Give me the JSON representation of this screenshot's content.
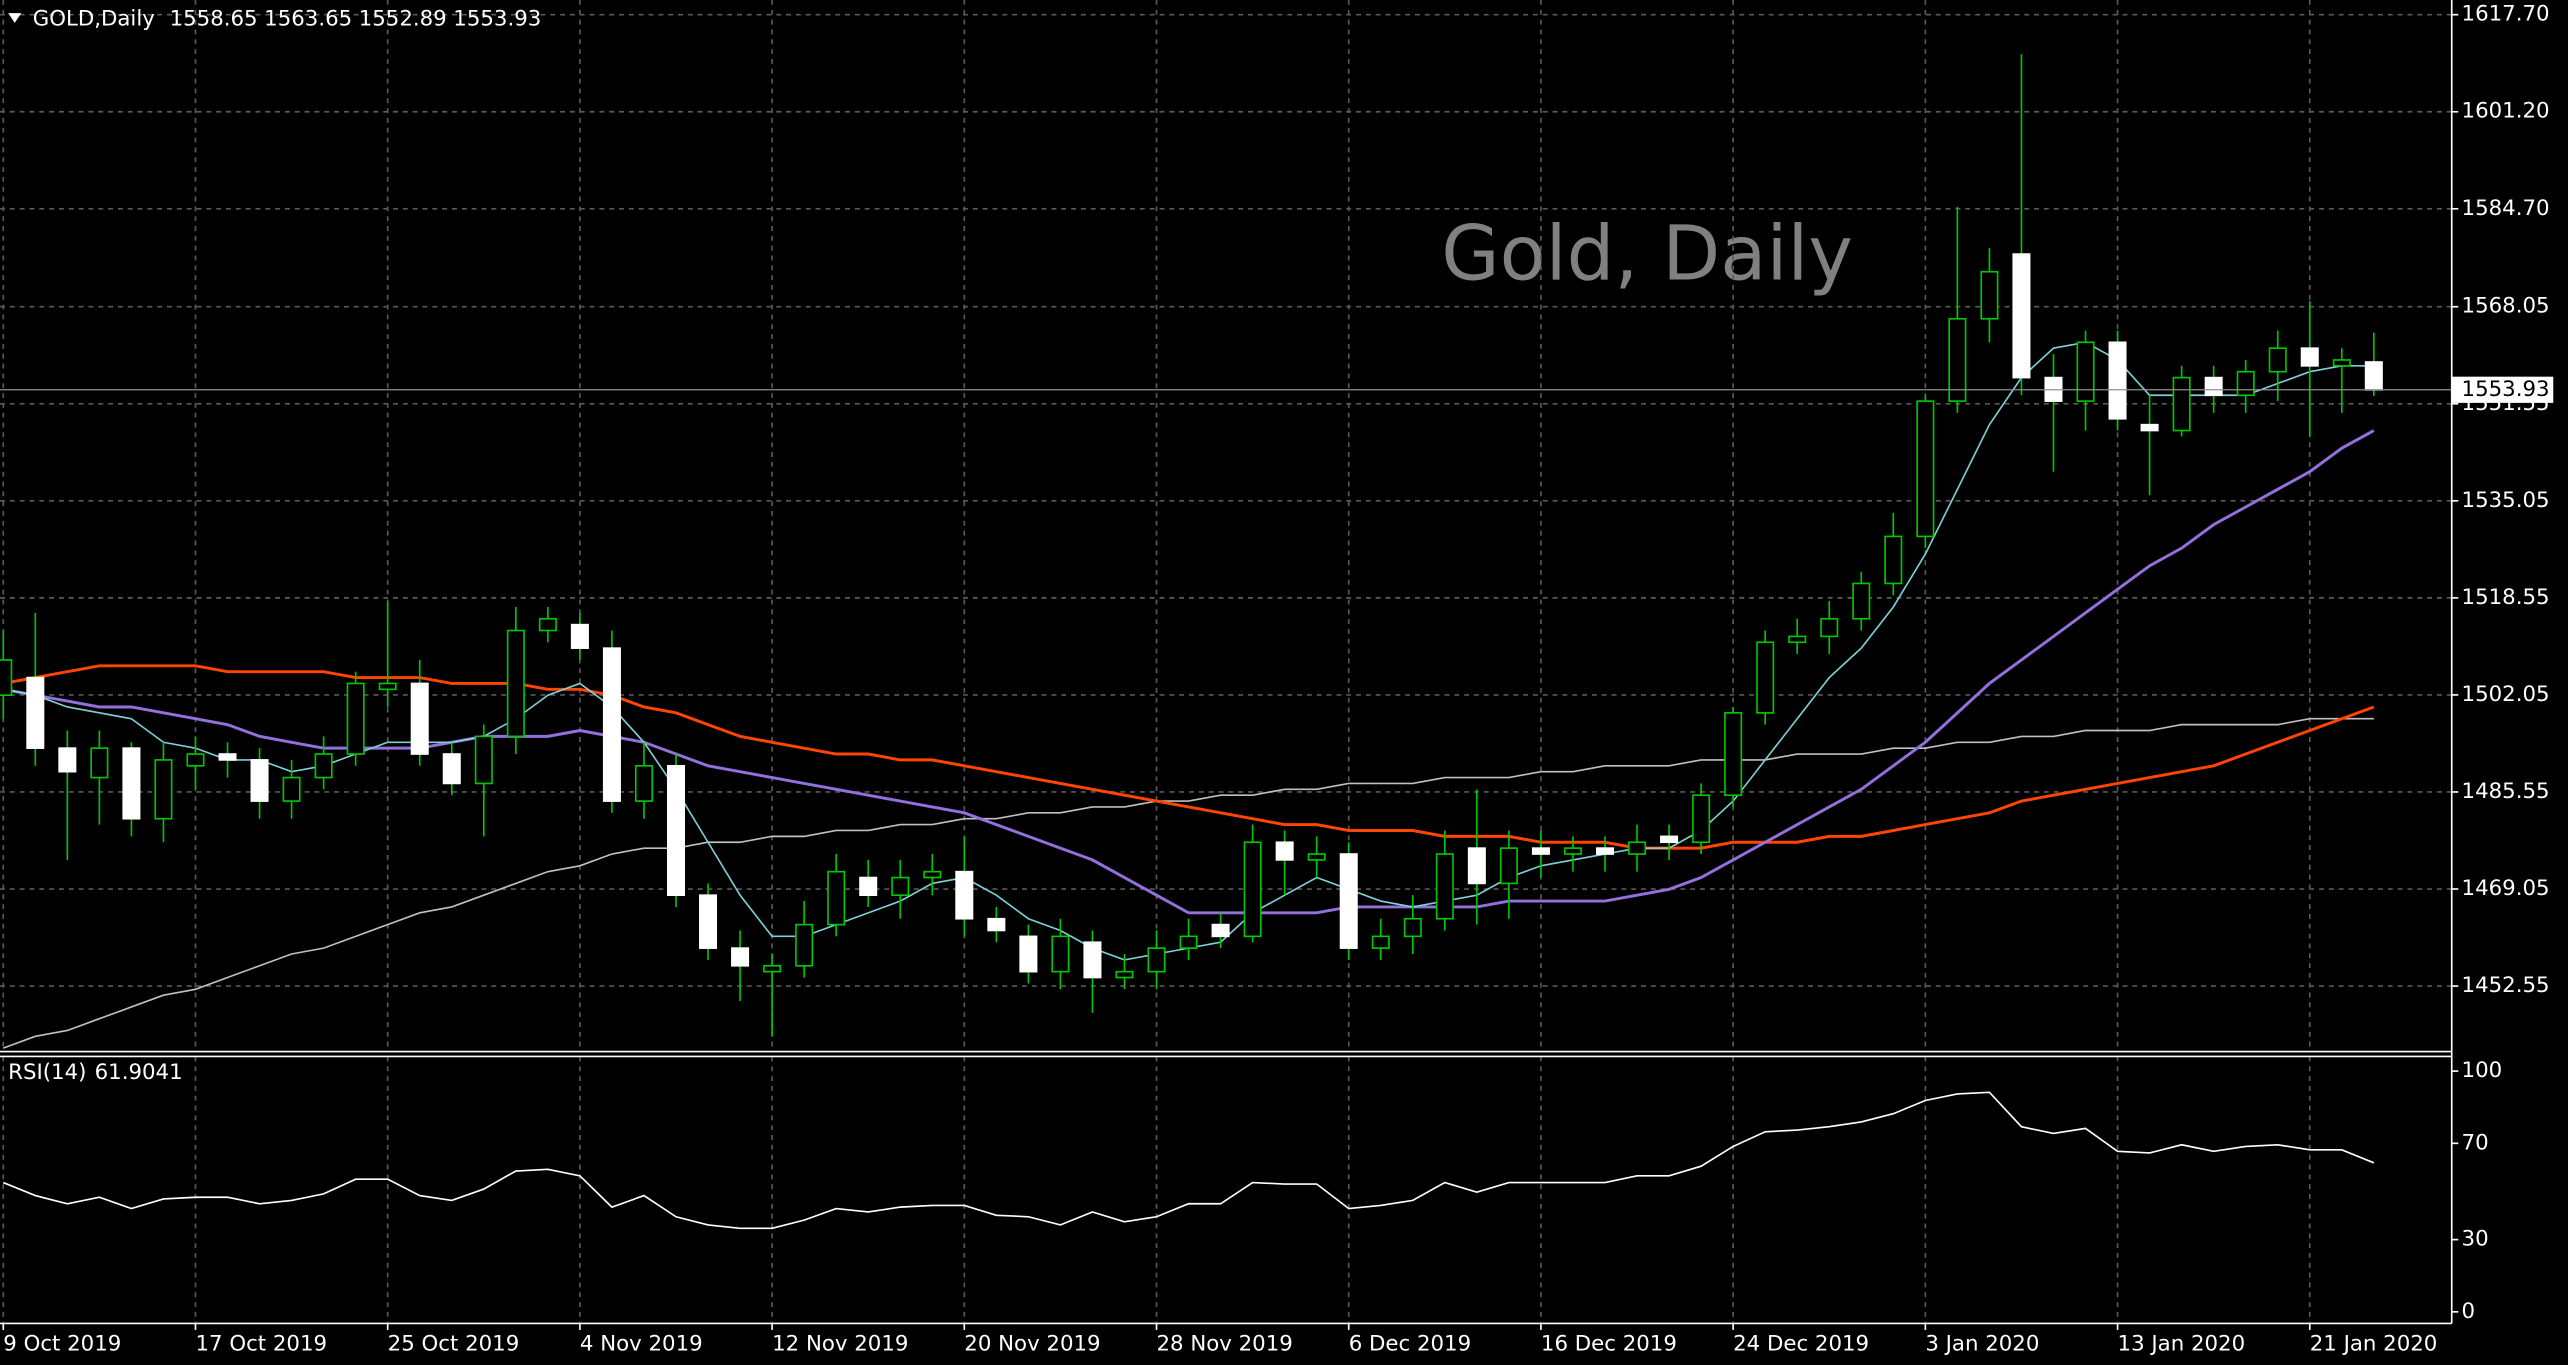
{
  "chart_data": [
    {
      "type": "candlestick",
      "title": "GOLD,Daily",
      "watermark": "Gold, Daily",
      "categories": [
        "9 Oct 2019",
        null,
        null,
        null,
        null,
        null,
        "17 Oct 2019",
        null,
        null,
        null,
        null,
        null,
        "25 Oct 2019",
        null,
        null,
        null,
        null,
        null,
        "4 Nov 2019",
        null,
        null,
        null,
        null,
        null,
        "12 Nov 2019",
        null,
        null,
        null,
        null,
        null,
        "20 Nov 2019",
        null,
        null,
        null,
        null,
        null,
        "28 Nov 2019",
        null,
        null,
        null,
        null,
        null,
        "6 Dec 2019",
        null,
        null,
        null,
        null,
        null,
        "16 Dec 2019",
        null,
        null,
        null,
        null,
        null,
        "24 Dec 2019",
        null,
        null,
        null,
        null,
        null,
        "3 Jan 2020",
        null,
        null,
        null,
        null,
        null,
        "13 Jan 2020",
        null,
        null,
        null,
        null,
        null,
        "21 Jan 2020",
        null,
        null
      ],
      "open": [
        1502,
        1505,
        1493,
        1488,
        1493,
        1481,
        1490,
        1492,
        1491,
        1484,
        1488,
        1492,
        1503,
        1504,
        1492,
        1487,
        1495,
        1513,
        1514,
        1510,
        1484,
        1490,
        1468,
        1459,
        1455,
        1456,
        1463,
        1471,
        1468,
        1471,
        1472,
        1464,
        1461,
        1455,
        1460,
        1454,
        1455,
        1459,
        1463,
        1461,
        1477,
        1474,
        1475,
        1459,
        1461,
        1464,
        1476,
        1470,
        1476,
        1475,
        1476,
        1475,
        1478,
        1477,
        1485,
        1499,
        1511,
        1512,
        1515,
        1521,
        1529,
        1552,
        1566,
        1577,
        1556,
        1552,
        1562,
        1548,
        1547,
        1556,
        1553,
        1557,
        1561,
        1558,
        1558.65
      ],
      "high": [
        1513,
        1516,
        1496,
        1496,
        1494,
        1494,
        1495,
        1494,
        1493,
        1491,
        1495,
        1506,
        1518,
        1508,
        1494,
        1497,
        1517,
        1517,
        1516,
        1513,
        1494,
        1492,
        1470,
        1462,
        1458,
        1467,
        1475,
        1474,
        1474,
        1475,
        1478,
        1466,
        1463,
        1464,
        1462,
        1458,
        1462,
        1464,
        1465,
        1480,
        1479,
        1478,
        1477,
        1464,
        1468,
        1479,
        1486,
        1479,
        1479,
        1478,
        1478,
        1480,
        1480,
        1487,
        1500,
        1513,
        1515,
        1518,
        1523,
        1533,
        1553,
        1585,
        1578,
        1611,
        1560,
        1564,
        1564,
        1553,
        1558,
        1558,
        1559,
        1564,
        1569,
        1561,
        1563.65
      ],
      "low": [
        1498,
        1490,
        1474,
        1480,
        1478,
        1477,
        1486,
        1488,
        1481,
        1481,
        1486,
        1490,
        1500,
        1490,
        1485,
        1478,
        1492,
        1511,
        1508,
        1482,
        1481,
        1466,
        1457,
        1450,
        1444,
        1454,
        1461,
        1466,
        1464,
        1468,
        1461,
        1460,
        1453,
        1452,
        1448,
        1452,
        1452,
        1457,
        1459,
        1460,
        1468,
        1471,
        1457,
        1457,
        1458,
        1462,
        1463,
        1464,
        1471,
        1472,
        1472,
        1472,
        1474,
        1475,
        1483,
        1497,
        1509,
        1509,
        1513,
        1519,
        1527,
        1550,
        1562,
        1553,
        1540,
        1547,
        1547,
        1536,
        1546,
        1550,
        1550,
        1552,
        1546,
        1550,
        1552.89
      ],
      "close": [
        1508,
        1493,
        1489,
        1493,
        1481,
        1491,
        1492,
        1491,
        1484,
        1488,
        1492,
        1504,
        1504,
        1492,
        1487,
        1495,
        1513,
        1515,
        1510,
        1484,
        1490,
        1468,
        1459,
        1456,
        1456,
        1463,
        1472,
        1468,
        1471,
        1472,
        1464,
        1462,
        1455,
        1461,
        1454,
        1455,
        1459,
        1461,
        1461,
        1477,
        1474,
        1475,
        1459,
        1461,
        1464,
        1475,
        1470,
        1476,
        1475,
        1476,
        1475,
        1477,
        1477,
        1485,
        1499,
        1511,
        1512,
        1515,
        1521,
        1529,
        1552,
        1566,
        1574,
        1556,
        1552,
        1562,
        1549,
        1547,
        1556,
        1553,
        1557,
        1561,
        1558,
        1559,
        1553.93
      ],
      "bull_color": "#000000",
      "bear_color": "#ffffff",
      "wick_color": "#00c800",
      "series": [
        {
          "color": "#c0c0c0",
          "values": [
            1442,
            1444,
            1445,
            1447,
            1449,
            1451,
            1452,
            1454,
            1456,
            1458,
            1459,
            1461,
            1463,
            1465,
            1466,
            1468,
            1470,
            1472,
            1473,
            1475,
            1476,
            1476,
            1477,
            1477,
            1478,
            1478,
            1479,
            1479,
            1480,
            1480,
            1481,
            1481,
            1482,
            1482,
            1483,
            1483,
            1484,
            1484,
            1485,
            1485,
            1486,
            1486,
            1487,
            1487,
            1487,
            1488,
            1488,
            1488,
            1489,
            1489,
            1490,
            1490,
            1490,
            1491,
            1491,
            1491,
            1492,
            1492,
            1492,
            1493,
            1493,
            1494,
            1494,
            1495,
            1495,
            1496,
            1496,
            1496,
            1497,
            1497,
            1497,
            1497,
            1498,
            1498,
            1498
          ]
        },
        {
          "color": "#ff4500",
          "values": [
            1504,
            1505,
            1506,
            1507,
            1507,
            1507,
            1507,
            1506,
            1506,
            1506,
            1506,
            1505,
            1505,
            1505,
            1504,
            1504,
            1504,
            1503,
            1503,
            1502,
            1500,
            1499,
            1497,
            1495,
            1494,
            1493,
            1492,
            1492,
            1491,
            1491,
            1490,
            1489,
            1488,
            1487,
            1486,
            1485,
            1484,
            1483,
            1482,
            1481,
            1480,
            1480,
            1479,
            1479,
            1479,
            1478,
            1478,
            1478,
            1477,
            1477,
            1477,
            1476,
            1476,
            1476,
            1477,
            1477,
            1477,
            1478,
            1478,
            1479,
            1480,
            1481,
            1482,
            1484,
            1485,
            1486,
            1487,
            1488,
            1489,
            1490,
            1492,
            1494,
            1496,
            1498,
            1500
          ]
        },
        {
          "color": "#9370db",
          "values": [
            1503,
            1502,
            1501,
            1500,
            1500,
            1499,
            1498,
            1497,
            1495,
            1494,
            1493,
            1493,
            1493,
            1493,
            1494,
            1495,
            1495,
            1495,
            1496,
            1495,
            1494,
            1492,
            1490,
            1489,
            1488,
            1487,
            1486,
            1485,
            1484,
            1483,
            1482,
            1480,
            1478,
            1476,
            1474,
            1471,
            1468,
            1465,
            1465,
            1465,
            1465,
            1465,
            1466,
            1466,
            1466,
            1466,
            1466,
            1467,
            1467,
            1467,
            1467,
            1468,
            1469,
            1471,
            1474,
            1477,
            1480,
            1483,
            1486,
            1490,
            1494,
            1499,
            1504,
            1508,
            1512,
            1516,
            1520,
            1524,
            1527,
            1531,
            1534,
            1537,
            1540,
            1544,
            1547
          ]
        },
        {
          "color": "#7fcfd6",
          "values": [
            1503,
            1502,
            1500,
            1499,
            1498,
            1494,
            1493,
            1491,
            1491,
            1489,
            1490,
            1492,
            1494,
            1494,
            1494,
            1495,
            1498,
            1502,
            1504,
            1500,
            1494,
            1486,
            1477,
            1468,
            1461,
            1461,
            1463,
            1465,
            1467,
            1470,
            1471,
            1468,
            1464,
            1462,
            1459,
            1457,
            1458,
            1459,
            1460,
            1465,
            1468,
            1471,
            1469,
            1467,
            1466,
            1467,
            1468,
            1471,
            1473,
            1474,
            1475,
            1476,
            1476,
            1479,
            1484,
            1491,
            1498,
            1505,
            1510,
            1517,
            1526,
            1537,
            1548,
            1556,
            1561,
            1562,
            1559,
            1553,
            1553,
            1553,
            1553,
            1555,
            1557,
            1558,
            1558
          ]
        }
      ],
      "ylim": [
        1441.7,
        1620.2
      ],
      "yticks": [
        {
          "value": 1617.7,
          "label": "1617.70"
        },
        {
          "value": 1601.2,
          "label": "1601.20"
        },
        {
          "value": 1584.7,
          "label": "1584.70"
        },
        1568.05,
        1551.55,
        1535.05,
        1518.55,
        1502.05,
        1485.55,
        1469.05,
        1452.55
      ],
      "grid": true
    },
    {
      "type": "line",
      "title": "RSI(14)",
      "color": "#ffffff",
      "values": [
        53.7,
        48.3,
        44.9,
        47.6,
        42.9,
        46.9,
        47.6,
        47.6,
        44.9,
        46.3,
        49.0,
        55.1,
        55.1,
        48.3,
        46.3,
        51.0,
        58.5,
        59.2,
        56.5,
        43.5,
        48.3,
        39.5,
        36.1,
        34.7,
        34.7,
        38.1,
        42.9,
        41.5,
        43.5,
        44.2,
        44.2,
        40.1,
        39.5,
        36.1,
        41.5,
        37.4,
        39.5,
        44.9,
        44.9,
        53.7,
        53.1,
        53.1,
        42.9,
        44.2,
        46.3,
        53.7,
        49.7,
        53.7,
        53.7,
        53.7,
        53.7,
        56.5,
        56.5,
        60.5,
        68.7,
        74.8,
        75.5,
        76.9,
        78.9,
        82.3,
        87.8,
        90.5,
        91.2,
        76.9,
        74.1,
        76.2,
        66.7,
        66.0,
        69.4,
        66.7,
        68.7,
        69.4,
        67.3,
        67.3,
        61.9041
      ],
      "ylim": [
        -4.8,
        106.1
      ],
      "yticks": [
        100,
        70,
        30,
        0
      ]
    }
  ]
}
